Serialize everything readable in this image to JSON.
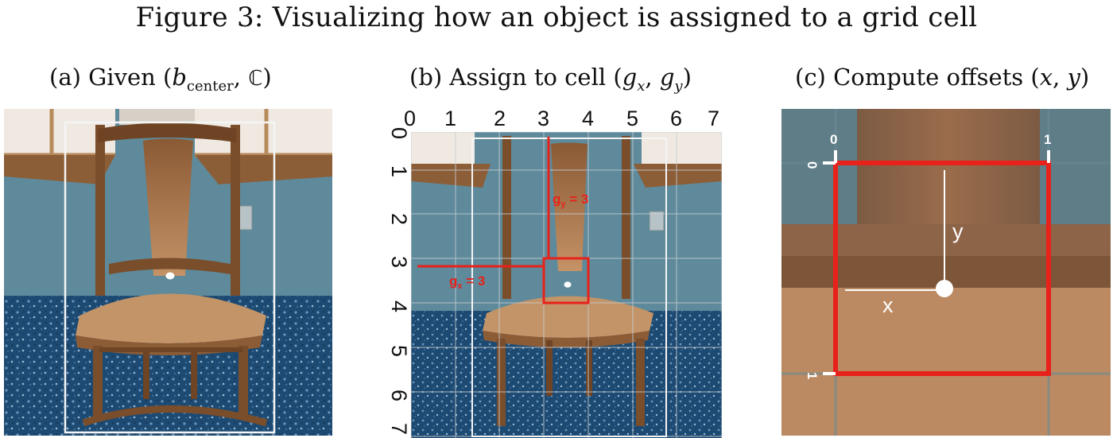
{
  "figure": {
    "title": "Figure 3: Visualizing how an object is assigned to a grid cell"
  },
  "panels": {
    "a": {
      "prefix": "(a) Given (",
      "b_symbol": "b",
      "b_sub": "center",
      "comma": ", ",
      "c_symbol": "ℂ",
      "suffix": ")"
    },
    "b": {
      "prefix": "(b) Assign to cell (",
      "gx": "g",
      "gx_sub": "x",
      "comma": ", ",
      "gy": "g",
      "gy_sub": "y",
      "suffix": ")",
      "col_ticks": [
        "0",
        "1",
        "2",
        "3",
        "4",
        "5",
        "6",
        "7"
      ],
      "row_ticks": [
        "0",
        "1",
        "2",
        "3",
        "4",
        "5",
        "6",
        "7"
      ],
      "gy_label": "g",
      "gy_label_sub": "y",
      "gy_label_value": " = 3",
      "gx_label": "g",
      "gx_label_sub": "x",
      "gx_label_value": " = 3",
      "assigned_cell": {
        "gx": 3,
        "gy": 3
      }
    },
    "c": {
      "prefix": "(c) Compute offsets (",
      "x": "x",
      "comma": ", ",
      "y": "y",
      "suffix": ")",
      "corner_top_left_x": "0",
      "corner_top_right_x": "1",
      "corner_top_y": "0",
      "corner_bottom_y": "1",
      "x_label": "x",
      "y_label": "y"
    }
  },
  "colors": {
    "highlight": "#e8221b",
    "box": "#f5f5f5",
    "wall": "#5e8a9b",
    "wood": "#b78558",
    "carpet": "#1d4a72"
  }
}
